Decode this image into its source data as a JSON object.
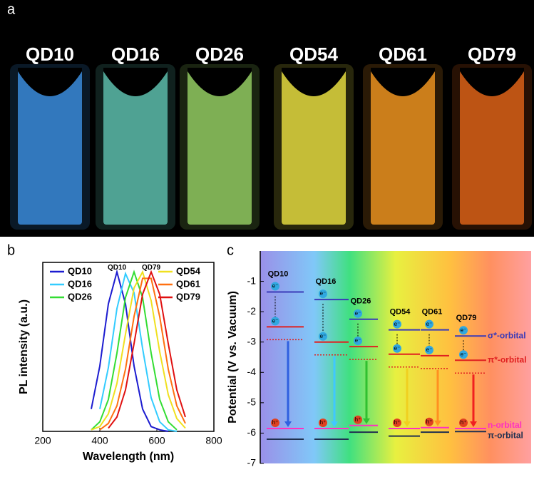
{
  "photo": {
    "panel_label": "a",
    "labels": [
      "QD10",
      "QD16",
      "QD26",
      "QD54",
      "QD61",
      "QD79"
    ]
  },
  "chart_data": [
    {
      "type": "line",
      "panel_label": "b",
      "x_label": "Wavelength (nm)",
      "y_label": "PL intensity (a.u.)",
      "x": [
        370,
        400,
        430,
        460,
        490,
        520,
        550,
        580,
        610,
        640,
        670,
        700
      ],
      "series": [
        {
          "name": "QD10",
          "color": "#1c1cd0",
          "values": [
            0.14,
            0.41,
            0.8,
            1,
            0.8,
            0.41,
            0.14,
            0.03,
            0.01,
            0,
            null,
            null
          ]
        },
        {
          "name": "QD16",
          "color": "#33ccff",
          "values": [
            null,
            0.14,
            0.4,
            0.77,
            0.99,
            0.87,
            0.52,
            0.21,
            0.06,
            0.01,
            0,
            null
          ]
        },
        {
          "name": "QD26",
          "color": "#33dd33",
          "values": [
            0.01,
            0.06,
            0.2,
            0.49,
            0.84,
            1,
            0.84,
            0.49,
            0.2,
            0.06,
            0.01,
            null
          ]
        },
        {
          "name": "QD54",
          "color": "#f0e020",
          "values": [
            0.01,
            0.03,
            0.11,
            0.3,
            0.61,
            0.9,
            1,
            0.82,
            0.5,
            0.23,
            0.08,
            0.02
          ]
        },
        {
          "name": "QD61",
          "color": "#ff7010",
          "values": [
            null,
            0.01,
            0.05,
            0.16,
            0.39,
            0.72,
            0.96,
            0.96,
            0.72,
            0.39,
            0.16,
            0.05
          ]
        },
        {
          "name": "QD79",
          "color": "#e01010",
          "values": [
            null,
            null,
            0.02,
            0.09,
            0.26,
            0.55,
            0.86,
            1,
            0.86,
            0.55,
            0.26,
            0.09
          ]
        }
      ],
      "annotations": [
        "QD10",
        "QD79"
      ],
      "xlim": [
        200,
        800
      ],
      "xticks": [
        200,
        400,
        600,
        800
      ],
      "ylim": [
        0,
        1.06
      ]
    },
    {
      "type": "energy-levels",
      "panel_label": "c",
      "y_label": "Potential (V vs. Vacuum)",
      "categories": [
        "QD10",
        "QD16",
        "QD26",
        "QD54",
        "QD61",
        "QD79"
      ],
      "category_colors": [
        "#3060e0",
        "#40c8ff",
        "#30c030",
        "#f0d020",
        "#ff9020",
        "#f02020"
      ],
      "electron_label": "e⁻",
      "hole_label": "h⁺",
      "series": [
        {
          "name": "σ*-orbital",
          "color": "#3a3ab8",
          "values": [
            -1.35,
            -1.6,
            -2.25,
            -2.6,
            -2.6,
            -2.8
          ]
        },
        {
          "name": "π*-orbital",
          "color": "#e02020",
          "values": [
            -2.5,
            -3.0,
            -3.15,
            -3.4,
            -3.45,
            -3.6
          ]
        },
        {
          "name": "n-orbital",
          "color": "#ff30c0",
          "values": [
            -5.85,
            -5.85,
            -5.75,
            -5.85,
            -5.82,
            -5.85
          ]
        },
        {
          "name": "π-orbital",
          "color": "#203050",
          "values": [
            -6.2,
            -6.2,
            -5.97,
            -6.1,
            -5.97,
            -5.95
          ]
        }
      ],
      "ylim": [
        -7,
        0
      ],
      "yticks": [
        -7,
        -6,
        -5,
        -4,
        -3,
        -2,
        -1
      ]
    }
  ]
}
